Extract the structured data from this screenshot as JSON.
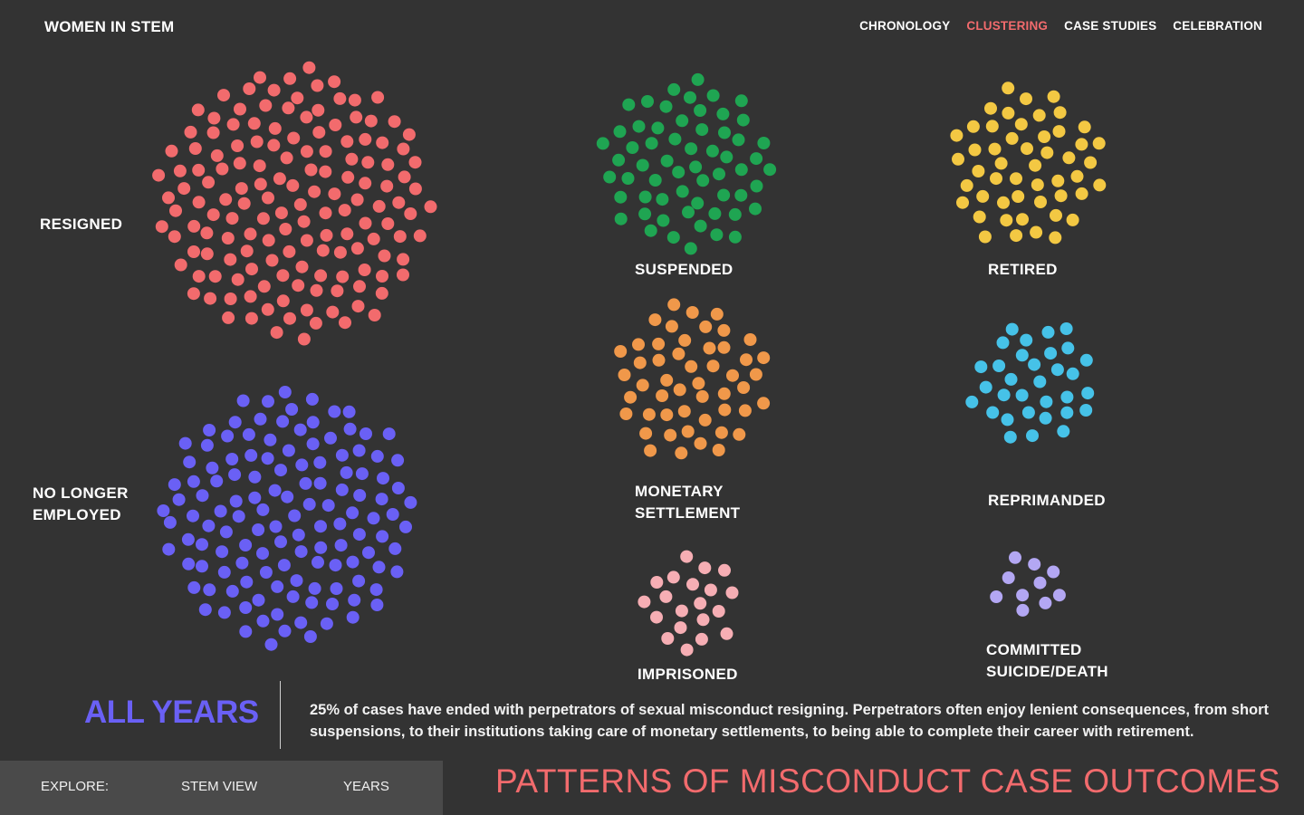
{
  "header": {
    "brand": "WOMEN IN STEM",
    "nav": [
      {
        "label": "CHRONOLOGY",
        "active": false
      },
      {
        "label": "CLUSTERING",
        "active": true
      },
      {
        "label": "CASE STUDIES",
        "active": false
      },
      {
        "label": "CELEBRATION",
        "active": false
      }
    ]
  },
  "clusters": [
    {
      "key": "resigned",
      "label_lines": [
        "RESIGNED"
      ],
      "color": "#f26b6d"
    },
    {
      "key": "suspended",
      "label_lines": [
        "SUSPENDED"
      ],
      "color": "#1fa552"
    },
    {
      "key": "retired",
      "label_lines": [
        "RETIRED"
      ],
      "color": "#f3c843"
    },
    {
      "key": "no-longer-employed",
      "label_lines": [
        "NO LONGER",
        "EMPLOYED"
      ],
      "color": "#6a60f5"
    },
    {
      "key": "monetary-settlement",
      "label_lines": [
        "MONETARY",
        "SETTLEMENT"
      ],
      "color": "#f0984a"
    },
    {
      "key": "reprimanded",
      "label_lines": [
        "REPRIMANDED"
      ],
      "color": "#46c2e8"
    },
    {
      "key": "imprisoned",
      "label_lines": [
        "IMPRISONED"
      ],
      "color": "#f6aeb4"
    },
    {
      "key": "committed-suicide-death",
      "label_lines": [
        "COMMITTED",
        "SUICIDE/DEATH"
      ],
      "color": "#b3a7f3"
    }
  ],
  "summary": {
    "period": "ALL YEARS",
    "description": "25% of cases have ended with perpetrators of sexual misconduct resigning. Perpetrators often enjoy lenient consequences, from short suspensions, to their institutions taking care of monetary settlements, to being able to complete their career with retirement."
  },
  "footer": {
    "explore_label": "EXPLORE:",
    "stem_view": "STEM VIEW",
    "years": "YEARS",
    "title": "PATTERNS OF MISCONDUCT CASE OUTCOMES"
  }
}
